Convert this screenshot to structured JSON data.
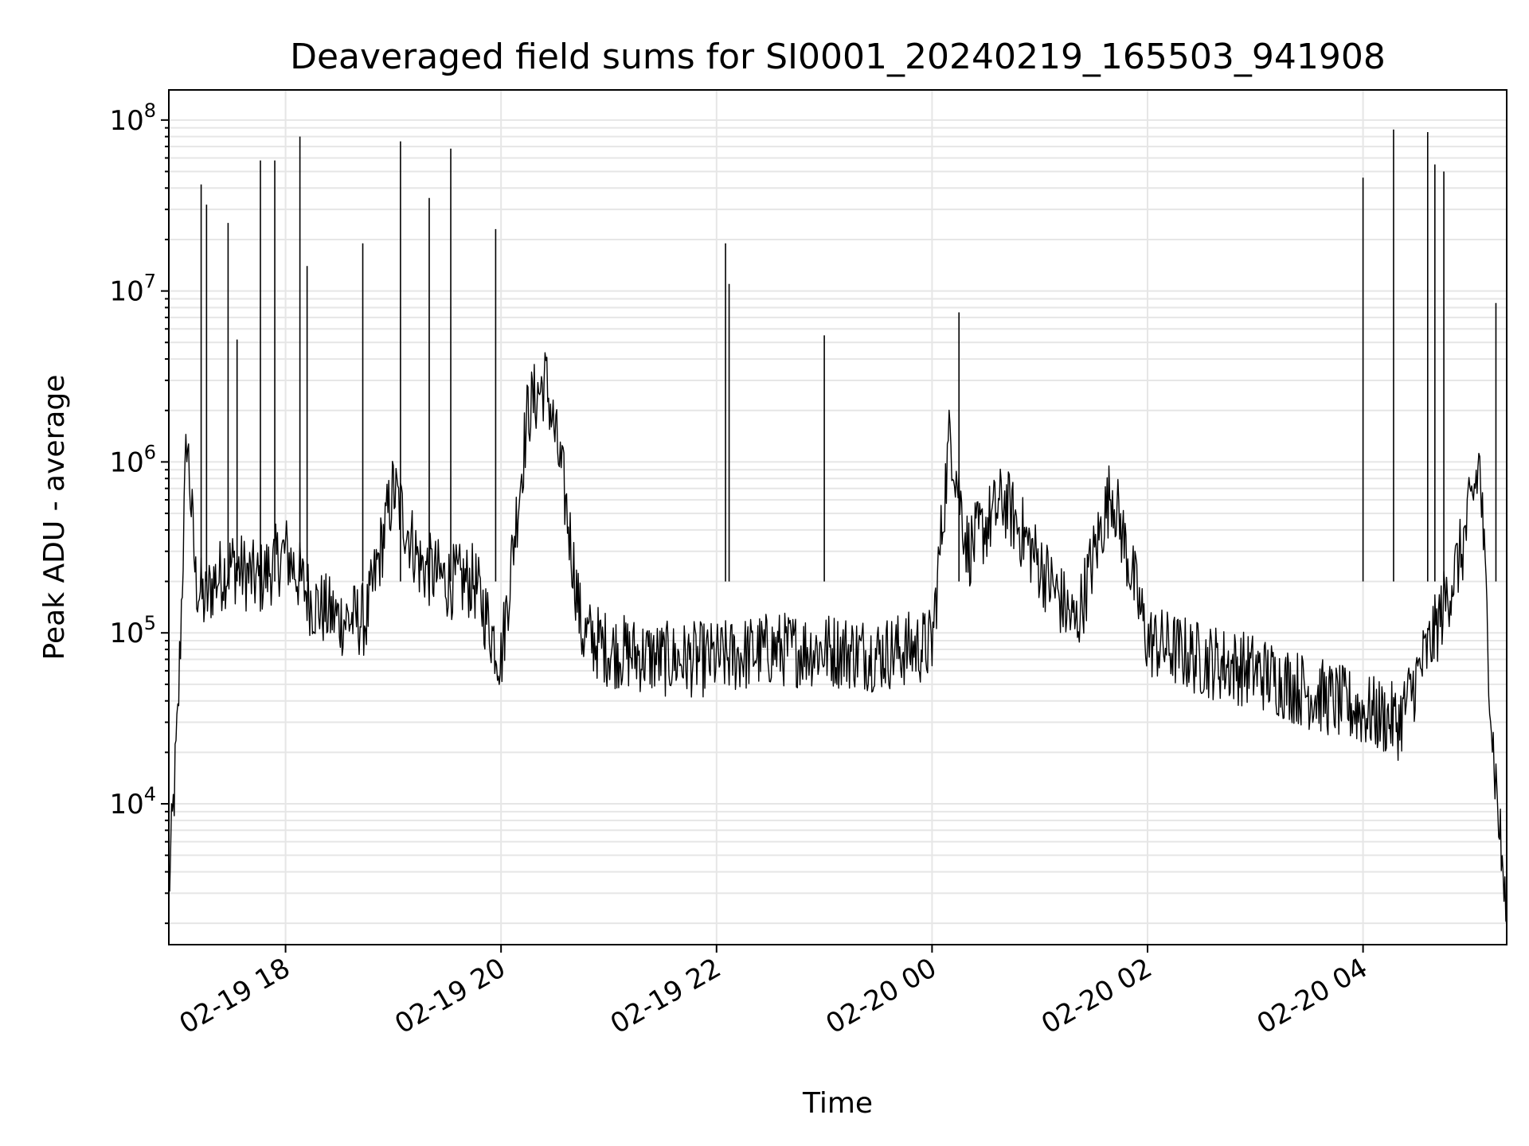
{
  "chart_data": {
    "type": "line",
    "title": "Deaveraged field sums for SI0001_20240219_165503_941908",
    "xlabel": "Time",
    "ylabel": "Peak ADU - average",
    "yscale": "log",
    "ylim": [
      1500,
      150000000
    ],
    "xlim": [
      "2024-02-19 16:55",
      "2024-02-20 05:20"
    ],
    "x_ticks": [
      "02-19 18",
      "02-19 20",
      "02-19 22",
      "02-20 00",
      "02-20 02",
      "02-20 04"
    ],
    "y_ticks": [
      {
        "base": "10",
        "exp": "4"
      },
      {
        "base": "10",
        "exp": "5"
      },
      {
        "base": "10",
        "exp": "6"
      },
      {
        "base": "10",
        "exp": "7"
      },
      {
        "base": "10",
        "exp": "8"
      }
    ],
    "grid": true,
    "line_color": "#000000",
    "series": [
      {
        "x": [
          "2024-02-19 16:55",
          "2024-02-19 17:00",
          "2024-02-19 17:05",
          "2024-02-19 17:10",
          "2024-02-19 17:15",
          "2024-02-19 17:20",
          "2024-02-19 17:30",
          "2024-02-19 17:45",
          "2024-02-19 18:00",
          "2024-02-19 18:15",
          "2024-02-19 18:30",
          "2024-02-19 18:45",
          "2024-02-19 19:00",
          "2024-02-19 19:15",
          "2024-02-19 19:30",
          "2024-02-19 19:45",
          "2024-02-19 20:00",
          "2024-02-19 20:15",
          "2024-02-19 20:25",
          "2024-02-19 20:35",
          "2024-02-19 20:45",
          "2024-02-19 21:00",
          "2024-02-19 21:30",
          "2024-02-19 22:00",
          "2024-02-19 22:30",
          "2024-02-19 23:00",
          "2024-02-19 23:30",
          "2024-02-20 00:00",
          "2024-02-20 00:10",
          "2024-02-20 00:20",
          "2024-02-20 00:40",
          "2024-02-20 01:00",
          "2024-02-20 01:20",
          "2024-02-20 01:40",
          "2024-02-20 02:00",
          "2024-02-20 02:30",
          "2024-02-20 03:00",
          "2024-02-20 03:30",
          "2024-02-20 04:00",
          "2024-02-20 04:20",
          "2024-02-20 04:40",
          "2024-02-20 04:55",
          "2024-02-20 05:05",
          "2024-02-20 05:12",
          "2024-02-20 05:20"
        ],
        "y": [
          3000,
          30000,
          1500000,
          200000,
          150000,
          200000,
          250000,
          200000,
          300000,
          150000,
          120000,
          120000,
          700000,
          250000,
          200000,
          200000,
          70000,
          2000000,
          3000000,
          700000,
          100000,
          80000,
          70000,
          70000,
          80000,
          80000,
          75000,
          85000,
          1500000,
          300000,
          600000,
          250000,
          110000,
          700000,
          90000,
          70000,
          60000,
          45000,
          35000,
          30000,
          100000,
          300000,
          1000000,
          25000,
          2000
        ]
      }
    ],
    "spikes": [
      {
        "x": "2024-02-19 17:13",
        "y": 42000000
      },
      {
        "x": "2024-02-19 17:16",
        "y": 32000000
      },
      {
        "x": "2024-02-19 17:28",
        "y": 25000000
      },
      {
        "x": "2024-02-19 17:33",
        "y": 5200000
      },
      {
        "x": "2024-02-19 17:46",
        "y": 58000000
      },
      {
        "x": "2024-02-19 17:54",
        "y": 58000000
      },
      {
        "x": "2024-02-19 18:08",
        "y": 80000000
      },
      {
        "x": "2024-02-19 18:12",
        "y": 14000000
      },
      {
        "x": "2024-02-19 18:43",
        "y": 19000000
      },
      {
        "x": "2024-02-19 19:04",
        "y": 75000000
      },
      {
        "x": "2024-02-19 19:20",
        "y": 35000000
      },
      {
        "x": "2024-02-19 19:32",
        "y": 68000000
      },
      {
        "x": "2024-02-19 19:57",
        "y": 23000000
      },
      {
        "x": "2024-02-19 22:05",
        "y": 19000000
      },
      {
        "x": "2024-02-19 22:07",
        "y": 11000000
      },
      {
        "x": "2024-02-19 23:00",
        "y": 5500000
      },
      {
        "x": "2024-02-20 00:15",
        "y": 7500000
      },
      {
        "x": "2024-02-20 04:00",
        "y": 46000000
      },
      {
        "x": "2024-02-20 04:17",
        "y": 88000000
      },
      {
        "x": "2024-02-20 04:36",
        "y": 85000000
      },
      {
        "x": "2024-02-20 04:40",
        "y": 55000000
      },
      {
        "x": "2024-02-20 04:45",
        "y": 50000000
      },
      {
        "x": "2024-02-20 05:14",
        "y": 8500000
      }
    ]
  }
}
